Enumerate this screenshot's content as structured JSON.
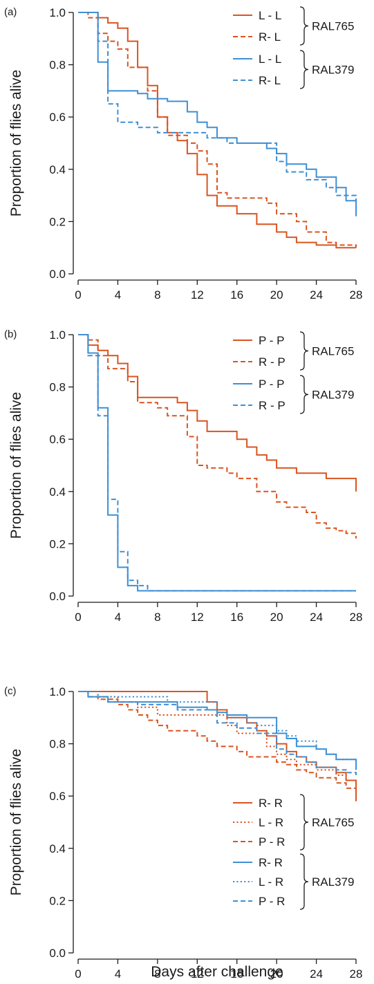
{
  "colors": {
    "RAL765": "#d9541e",
    "RAL379": "#3e8fd4",
    "axis": "#1a1a1a"
  },
  "chart_data": [
    {
      "type": "line",
      "panel": "(a)",
      "xlabel": "",
      "ylabel": "Proportion of flies alive",
      "xlim": [
        0,
        28
      ],
      "ylim": [
        0,
        1
      ],
      "xticks": [
        "0",
        "4",
        "8",
        "12",
        "16",
        "20",
        "24",
        "28"
      ],
      "yticks": [
        "0.0",
        "0.2",
        "0.4",
        "0.6",
        "0.8",
        "1.0"
      ],
      "legend": [
        {
          "group": "RAL765",
          "entries": [
            {
              "label": "L - L",
              "style": "solid"
            },
            {
              "label": "R- L",
              "style": "dashed"
            }
          ]
        },
        {
          "group": "RAL379",
          "entries": [
            {
              "label": "L - L",
              "style": "solid"
            },
            {
              "label": "R- L",
              "style": "dashed"
            }
          ]
        }
      ],
      "series": [
        {
          "label": "L - L",
          "line": "RAL765",
          "style": "solid",
          "x": [
            0,
            2,
            3,
            4,
            5,
            6,
            7,
            8,
            9,
            10,
            11,
            12,
            13,
            14,
            16,
            18,
            20,
            21,
            22,
            24,
            26,
            28
          ],
          "y": [
            1.0,
            0.98,
            0.96,
            0.94,
            0.89,
            0.79,
            0.72,
            0.6,
            0.54,
            0.51,
            0.46,
            0.38,
            0.3,
            0.26,
            0.23,
            0.19,
            0.16,
            0.14,
            0.12,
            0.11,
            0.1,
            0.1
          ]
        },
        {
          "label": "R- L",
          "line": "RAL765",
          "style": "dashed",
          "x": [
            0,
            1,
            2,
            3,
            4,
            5,
            7,
            8,
            9,
            11,
            12,
            13,
            14,
            15,
            19,
            20,
            22,
            23,
            25,
            26,
            28
          ],
          "y": [
            1.0,
            0.98,
            0.92,
            0.89,
            0.86,
            0.79,
            0.7,
            0.6,
            0.53,
            0.5,
            0.47,
            0.42,
            0.31,
            0.29,
            0.27,
            0.23,
            0.2,
            0.16,
            0.12,
            0.11,
            0.1
          ]
        },
        {
          "label": "L - L",
          "line": "RAL379",
          "style": "solid",
          "x": [
            0,
            2,
            3,
            5,
            6,
            7,
            9,
            11,
            12,
            13,
            14,
            16,
            19,
            20,
            21,
            23,
            24,
            26,
            27,
            28
          ],
          "y": [
            1.0,
            0.81,
            0.7,
            0.7,
            0.69,
            0.67,
            0.66,
            0.62,
            0.58,
            0.56,
            0.52,
            0.5,
            0.48,
            0.46,
            0.42,
            0.4,
            0.37,
            0.33,
            0.28,
            0.22
          ]
        },
        {
          "label": "R- L",
          "line": "RAL379",
          "style": "dashed",
          "x": [
            0,
            2,
            3,
            4,
            6,
            8,
            13,
            15,
            20,
            21,
            23,
            25,
            26,
            28
          ],
          "y": [
            1.0,
            0.89,
            0.65,
            0.58,
            0.56,
            0.54,
            0.52,
            0.5,
            0.43,
            0.39,
            0.36,
            0.33,
            0.3,
            0.28
          ]
        }
      ]
    },
    {
      "type": "line",
      "panel": "(b)",
      "xlabel": "",
      "ylabel": "Proportion of flies alive",
      "xlim": [
        0,
        28
      ],
      "ylim": [
        0,
        1
      ],
      "xticks": [
        "0",
        "4",
        "8",
        "12",
        "16",
        "20",
        "24",
        "28"
      ],
      "yticks": [
        "0.0",
        "0.2",
        "0.4",
        "0.6",
        "0.8",
        "1.0"
      ],
      "legend": [
        {
          "group": "RAL765",
          "entries": [
            {
              "label": "P - P",
              "style": "solid"
            },
            {
              "label": "R - P",
              "style": "dashed"
            }
          ]
        },
        {
          "group": "RAL379",
          "entries": [
            {
              "label": "P - P",
              "style": "solid"
            },
            {
              "label": "R - P",
              "style": "dashed"
            }
          ]
        }
      ],
      "series": [
        {
          "label": "P - P",
          "line": "RAL765",
          "style": "solid",
          "x": [
            0,
            1,
            2,
            3,
            4,
            5,
            6,
            10,
            11,
            12,
            13,
            16,
            17,
            18,
            19,
            20,
            22,
            25,
            28
          ],
          "y": [
            1.0,
            0.96,
            0.94,
            0.92,
            0.89,
            0.84,
            0.76,
            0.74,
            0.71,
            0.67,
            0.63,
            0.6,
            0.57,
            0.54,
            0.52,
            0.49,
            0.47,
            0.45,
            0.4
          ]
        },
        {
          "label": "R - P",
          "line": "RAL765",
          "style": "dashed",
          "x": [
            0,
            1,
            2,
            3,
            5,
            6,
            8,
            9,
            11,
            12,
            13,
            15,
            16,
            18,
            20,
            21,
            23,
            24,
            25,
            26,
            27,
            28
          ],
          "y": [
            1.0,
            0.98,
            0.92,
            0.87,
            0.82,
            0.74,
            0.72,
            0.69,
            0.61,
            0.5,
            0.49,
            0.47,
            0.45,
            0.4,
            0.36,
            0.34,
            0.32,
            0.28,
            0.26,
            0.25,
            0.24,
            0.22
          ]
        },
        {
          "label": "P - P",
          "line": "RAL379",
          "style": "solid",
          "x": [
            0,
            1,
            2,
            3,
            4,
            5,
            6,
            28
          ],
          "y": [
            1.0,
            0.93,
            0.72,
            0.31,
            0.11,
            0.04,
            0.02,
            0.02
          ]
        },
        {
          "label": "R - P",
          "line": "RAL379",
          "style": "dashed",
          "x": [
            0,
            1,
            2,
            3,
            4,
            5,
            6,
            7,
            28
          ],
          "y": [
            1.0,
            0.92,
            0.69,
            0.37,
            0.17,
            0.06,
            0.04,
            0.02,
            0.02
          ]
        }
      ]
    },
    {
      "type": "line",
      "panel": "(c)",
      "xlabel": "Days after challenge",
      "ylabel": "Proportion of flies alive",
      "xlim": [
        0,
        28
      ],
      "ylim": [
        0,
        1
      ],
      "xticks": [
        "0",
        "4",
        "8",
        "12",
        "16",
        "20",
        "24",
        "28"
      ],
      "yticks": [
        "0.0",
        "0.2",
        "0.4",
        "0.6",
        "0.8",
        "1.0"
      ],
      "legend": [
        {
          "group": "RAL765",
          "entries": [
            {
              "label": "R- R",
              "style": "solid"
            },
            {
              "label": "L - R",
              "style": "dotted"
            },
            {
              "label": "P - R",
              "style": "dashed"
            }
          ]
        },
        {
          "group": "RAL379",
          "entries": [
            {
              "label": "R- R",
              "style": "solid"
            },
            {
              "label": "L - R",
              "style": "dotted"
            },
            {
              "label": "P - R",
              "style": "dashed"
            }
          ]
        }
      ],
      "series": [
        {
          "label": "R- R",
          "line": "RAL765",
          "style": "solid",
          "x": [
            0,
            13,
            14,
            15,
            17,
            18,
            19,
            20,
            21,
            22,
            23,
            24,
            26,
            27,
            28
          ],
          "y": [
            1.0,
            0.96,
            0.93,
            0.9,
            0.88,
            0.85,
            0.83,
            0.8,
            0.77,
            0.75,
            0.73,
            0.71,
            0.69,
            0.66,
            0.58
          ]
        },
        {
          "label": "L - R",
          "line": "RAL765",
          "style": "dotted",
          "x": [
            0,
            2,
            4,
            6,
            8,
            15,
            16,
            19,
            20,
            21,
            22,
            24,
            26,
            27,
            28
          ],
          "y": [
            1.0,
            0.98,
            0.96,
            0.94,
            0.91,
            0.87,
            0.84,
            0.79,
            0.76,
            0.74,
            0.72,
            0.7,
            0.68,
            0.66,
            0.62
          ]
        },
        {
          "label": "P - R",
          "line": "RAL765",
          "style": "dashed",
          "x": [
            0,
            1,
            2,
            4,
            5,
            6,
            7,
            8,
            9,
            12,
            13,
            14,
            16,
            17,
            20,
            21,
            22,
            23,
            24,
            26,
            27,
            28
          ],
          "y": [
            1.0,
            0.98,
            0.97,
            0.95,
            0.93,
            0.91,
            0.89,
            0.87,
            0.85,
            0.83,
            0.81,
            0.79,
            0.77,
            0.75,
            0.73,
            0.72,
            0.7,
            0.69,
            0.67,
            0.65,
            0.63,
            0.6
          ]
        },
        {
          "label": "R- R",
          "line": "RAL379",
          "style": "solid",
          "x": [
            0,
            1,
            3,
            10,
            13,
            14,
            15,
            17,
            20,
            21,
            22,
            24,
            25,
            26,
            28
          ],
          "y": [
            1.0,
            0.98,
            0.96,
            0.94,
            0.93,
            0.92,
            0.91,
            0.9,
            0.84,
            0.82,
            0.79,
            0.78,
            0.76,
            0.74,
            0.7
          ]
        },
        {
          "label": "L - R",
          "line": "RAL379",
          "style": "dotted",
          "x": [
            0,
            2,
            9,
            14,
            15,
            17,
            18,
            20,
            21,
            22,
            24,
            25,
            26,
            28
          ],
          "y": [
            1.0,
            0.98,
            0.96,
            0.92,
            0.9,
            0.88,
            0.87,
            0.85,
            0.83,
            0.81,
            0.78,
            0.76,
            0.74,
            0.72
          ]
        },
        {
          "label": "P - R",
          "line": "RAL379",
          "style": "dashed",
          "x": [
            0,
            1,
            3,
            6,
            10,
            14,
            16,
            18,
            20,
            21,
            22,
            23,
            24,
            26,
            27,
            28
          ],
          "y": [
            1.0,
            0.98,
            0.96,
            0.95,
            0.93,
            0.88,
            0.86,
            0.84,
            0.78,
            0.76,
            0.75,
            0.73,
            0.71,
            0.7,
            0.69,
            0.68
          ]
        }
      ]
    }
  ]
}
